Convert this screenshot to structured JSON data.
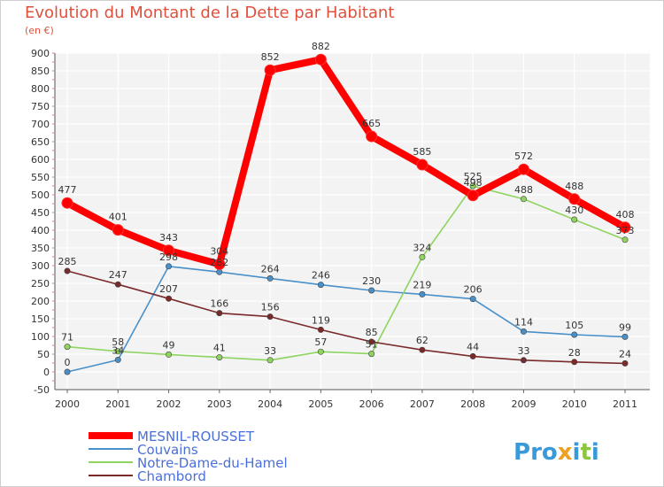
{
  "chart_data": {
    "type": "line",
    "title": "Evolution du Montant de la Dette par Habitant",
    "subtitle": "(en €)",
    "x": [
      "2000",
      "2001",
      "2002",
      "2003",
      "2004",
      "2005",
      "2006",
      "2007",
      "2008",
      "2009",
      "2010",
      "2011"
    ],
    "ylim": [
      -50,
      900
    ],
    "yticks": [
      -50,
      0,
      50,
      100,
      150,
      200,
      250,
      300,
      350,
      400,
      450,
      500,
      550,
      600,
      650,
      700,
      750,
      800,
      850,
      900
    ],
    "grid": true,
    "legend_position": "bottom-left",
    "series": [
      {
        "name": "MESNIL-ROUSSET",
        "color": "#ff0000",
        "emphasis": true,
        "values": [
          477,
          401,
          343,
          304,
          852,
          882,
          665,
          585,
          498,
          572,
          488,
          408
        ]
      },
      {
        "name": "Couvains",
        "color": "#4a90c8",
        "emphasis": false,
        "values": [
          0,
          34,
          298,
          282,
          264,
          246,
          230,
          219,
          206,
          114,
          105,
          99
        ]
      },
      {
        "name": "Notre-Dame-du-Hamel",
        "color": "#8fd460",
        "emphasis": false,
        "values": [
          71,
          58,
          49,
          41,
          33,
          57,
          51,
          324,
          525,
          488,
          430,
          373
        ]
      },
      {
        "name": "Chambord",
        "color": "#7a2a2a",
        "emphasis": false,
        "values": [
          285,
          247,
          207,
          166,
          156,
          119,
          85,
          62,
          44,
          33,
          28,
          24
        ]
      }
    ]
  },
  "logo": {
    "text": "Proxiti"
  }
}
